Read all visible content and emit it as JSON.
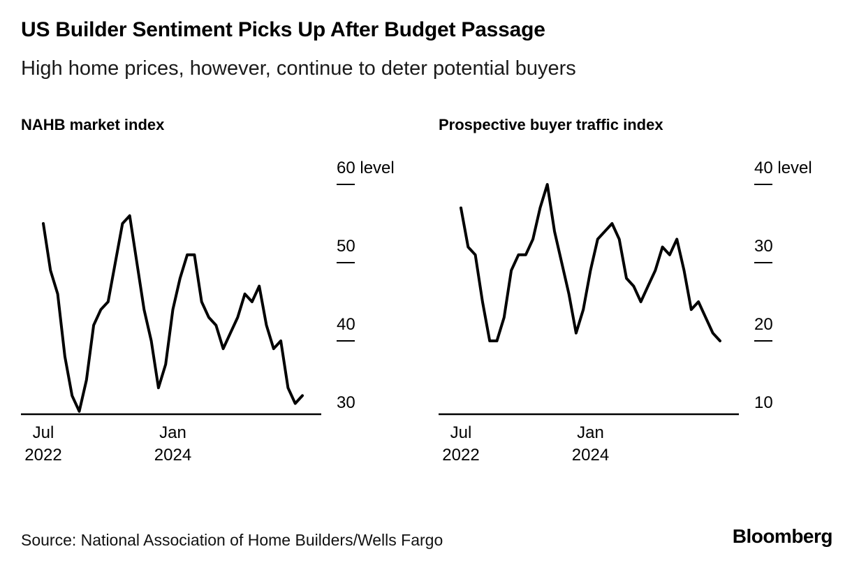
{
  "header": {
    "title": "US Builder Sentiment Picks Up After Budget Passage",
    "subtitle": "High home prices, however, continue to deter potential buyers"
  },
  "footer": {
    "source": "Source: National Association of Home Builders/Wells Fargo",
    "brand": "Bloomberg"
  },
  "chart_data": [
    {
      "type": "line",
      "title": "NAHB market index",
      "ylabel": "level",
      "yticks": [
        60,
        50,
        40,
        30
      ],
      "ylim": [
        28,
        62
      ],
      "x_range": "Jul 2022 - Jul 2025, monthly",
      "x_tick_labels": [
        {
          "month": "Jul",
          "year": "2022",
          "index": 0
        },
        {
          "month": "Jan",
          "year": "2024",
          "index": 18
        }
      ],
      "line_color": "#000000",
      "values": [
        55,
        49,
        46,
        38,
        33,
        31,
        35,
        42,
        44,
        45,
        50,
        55,
        56,
        50,
        44,
        40,
        34,
        37,
        44,
        48,
        51,
        51,
        45,
        43,
        42,
        39,
        41,
        43,
        46,
        45,
        47,
        42,
        39,
        40,
        34,
        32,
        33
      ]
    },
    {
      "type": "line",
      "title": "Prospective buyer traffic index",
      "ylabel": "level",
      "yticks": [
        40,
        30,
        20,
        10
      ],
      "ylim": [
        8,
        42
      ],
      "x_range": "Jul 2022 - Jul 2025, monthly",
      "x_tick_labels": [
        {
          "month": "Jul",
          "year": "2022",
          "index": 0
        },
        {
          "month": "Jan",
          "year": "2024",
          "index": 18
        }
      ],
      "line_color": "#000000",
      "values": [
        37,
        32,
        31,
        25,
        20,
        20,
        23,
        29,
        31,
        31,
        33,
        37,
        40,
        34,
        30,
        26,
        21,
        24,
        29,
        33,
        34,
        35,
        33,
        28,
        27,
        25,
        27,
        29,
        32,
        31,
        33,
        29,
        24,
        25,
        23,
        21,
        20
      ]
    }
  ]
}
